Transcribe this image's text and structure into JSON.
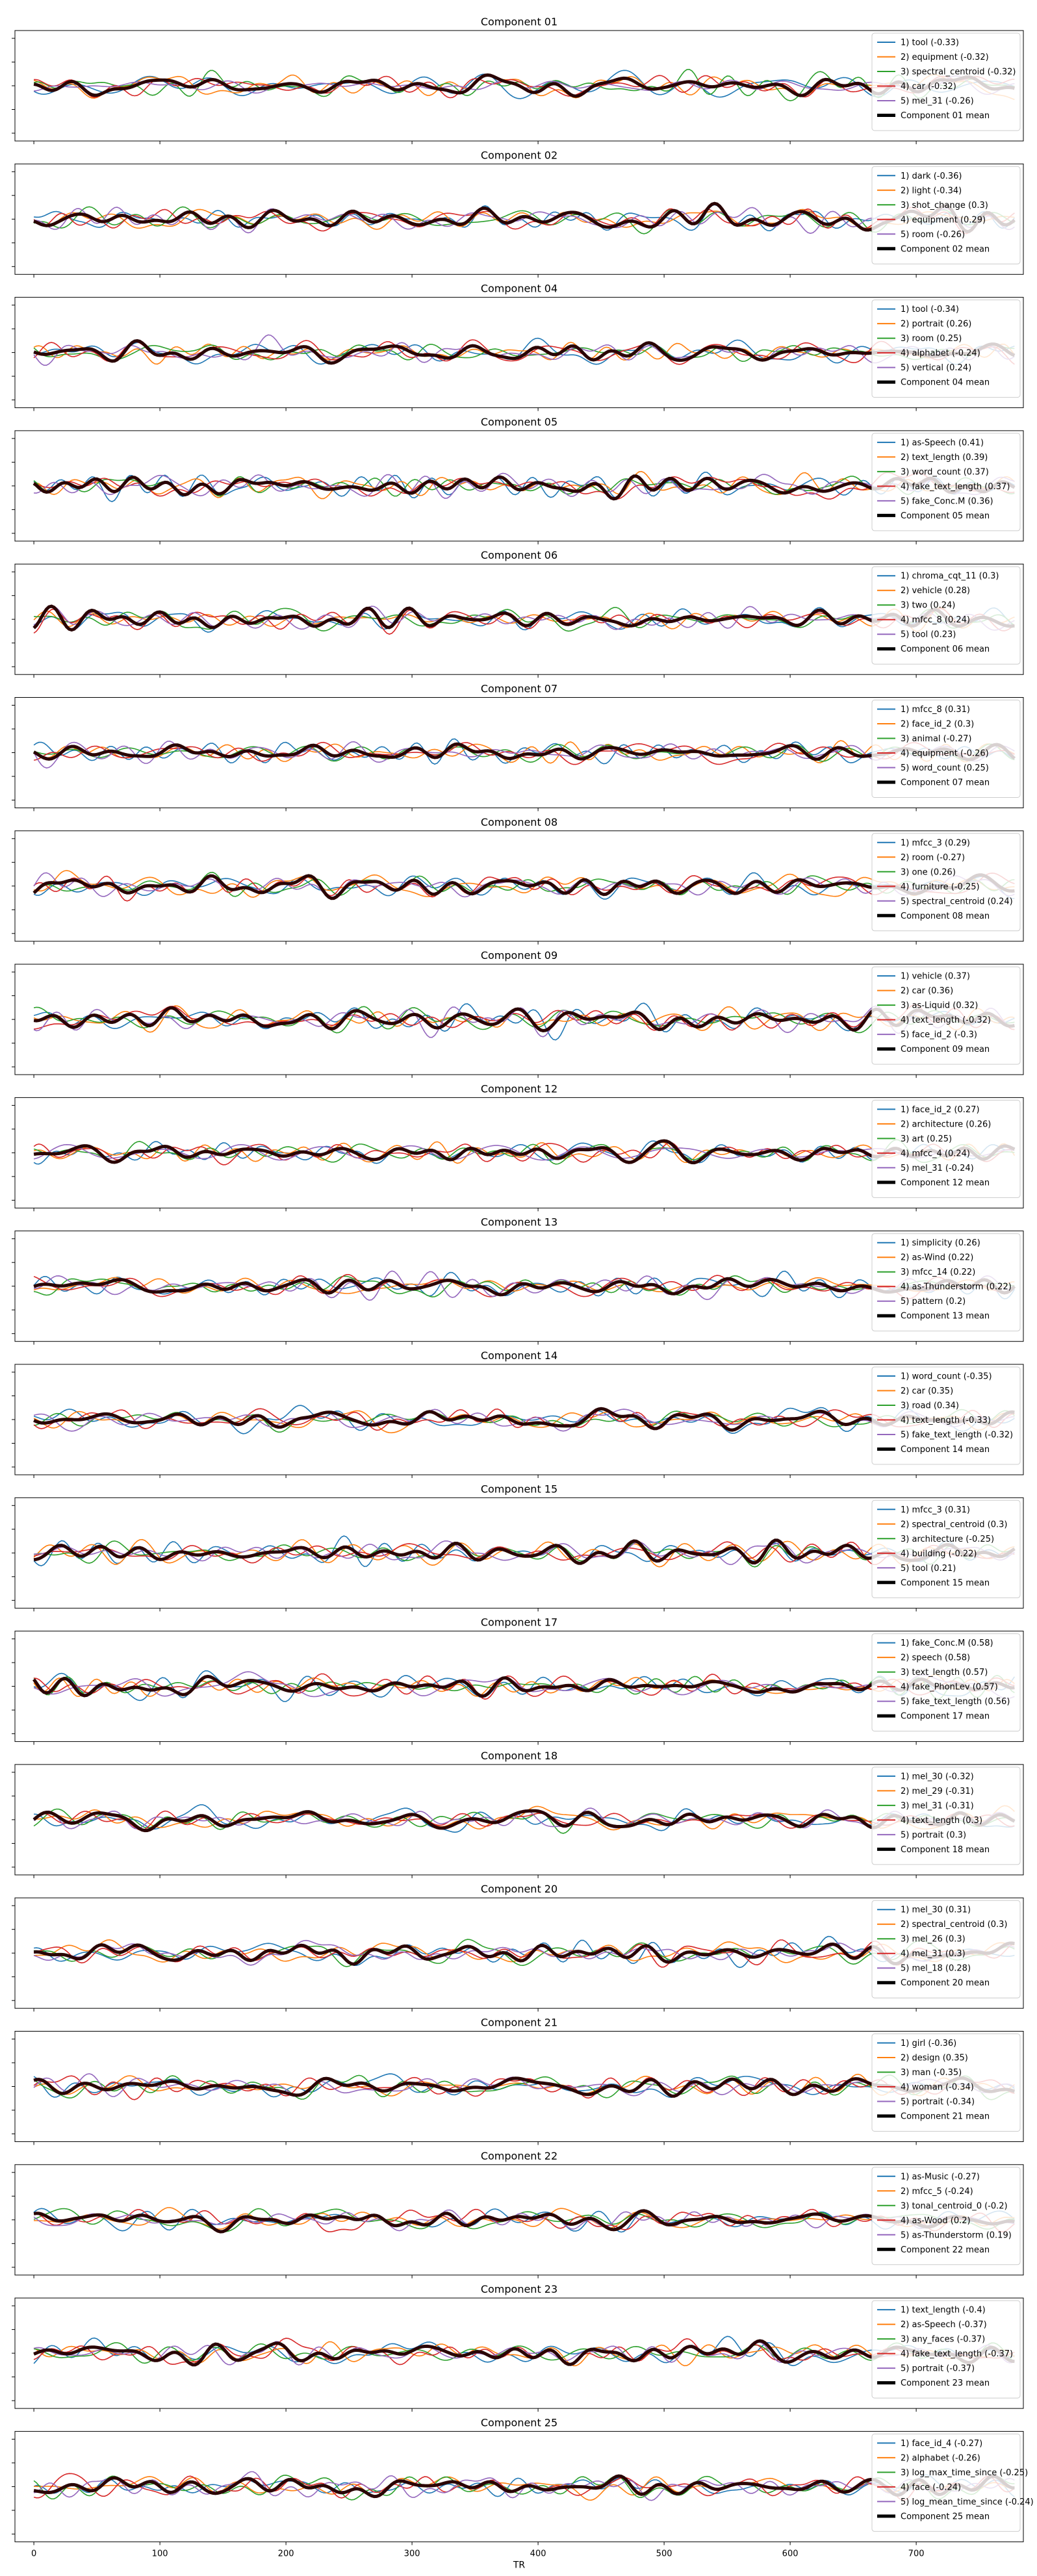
{
  "colors": {
    "series": [
      "#1f77b4",
      "#ff7f0e",
      "#2ca02c",
      "#d62728",
      "#9467bd",
      "#8c564b",
      "#e377c2"
    ],
    "mean": "#2a0505"
  },
  "xaxis": {
    "label": "TR",
    "ticks": [
      0,
      100,
      200,
      300,
      400,
      500,
      600,
      700
    ],
    "lim": [
      -15,
      785
    ]
  },
  "chart_data": [
    {
      "type": "line",
      "title": "Component 01",
      "ylim": [
        -3,
        3
      ],
      "series": [
        {
          "name": "1) tool (-0.33)"
        },
        {
          "name": "2) equipment (-0.32)"
        },
        {
          "name": "3) spectral_centroid (-0.32)"
        },
        {
          "name": "4) car (-0.32)"
        },
        {
          "name": "5) mel_31 (-0.26)"
        }
      ],
      "mean_label": "Component 01 mean"
    },
    {
      "type": "line",
      "title": "Component 02",
      "ylim": [
        -3,
        3
      ],
      "series": [
        {
          "name": "1) dark (-0.36)"
        },
        {
          "name": "2) light (-0.34)"
        },
        {
          "name": "3) shot_change (0.3)"
        },
        {
          "name": "4) equipment (0.29)"
        },
        {
          "name": "5) room (-0.26)"
        }
      ],
      "mean_label": "Component 02 mean"
    },
    {
      "type": "line",
      "title": "Component 04",
      "ylim": [
        -3,
        3
      ],
      "series": [
        {
          "name": "1) tool (-0.34)"
        },
        {
          "name": "2) portrait (0.26)"
        },
        {
          "name": "3) room (0.25)"
        },
        {
          "name": "4) alphabet (-0.24)"
        },
        {
          "name": "5) vertical (0.24)"
        }
      ],
      "mean_label": "Component 04 mean"
    },
    {
      "type": "line",
      "title": "Component 05",
      "ylim": [
        -3,
        3
      ],
      "series": [
        {
          "name": "1) as-Speech (0.41)"
        },
        {
          "name": "2) text_length (0.39)"
        },
        {
          "name": "3) word_count (0.37)"
        },
        {
          "name": "4) fake_text_length (0.37)"
        },
        {
          "name": "5) fake_Conc.M (0.36)"
        }
      ],
      "mean_label": "Component 05 mean"
    },
    {
      "type": "line",
      "title": "Component 06",
      "ylim": [
        -3,
        3
      ],
      "series": [
        {
          "name": "1) chroma_cqt_11 (0.3)"
        },
        {
          "name": "2) vehicle (0.28)"
        },
        {
          "name": "3) two (0.24)"
        },
        {
          "name": "4) mfcc_8 (0.24)"
        },
        {
          "name": "5) tool (0.23)"
        }
      ],
      "mean_label": "Component 06 mean"
    },
    {
      "type": "line",
      "title": "Component 07",
      "ylim": [
        -3,
        3
      ],
      "series": [
        {
          "name": "1) mfcc_8 (0.31)"
        },
        {
          "name": "2) face_id_2 (0.3)"
        },
        {
          "name": "3) animal (-0.27)"
        },
        {
          "name": "4) equipment (-0.26)"
        },
        {
          "name": "5) word_count (0.25)"
        }
      ],
      "mean_label": "Component 07 mean"
    },
    {
      "type": "line",
      "title": "Component 08",
      "ylim": [
        -3,
        3
      ],
      "series": [
        {
          "name": "1) mfcc_3 (0.29)"
        },
        {
          "name": "2) room (-0.27)"
        },
        {
          "name": "3) one (0.26)"
        },
        {
          "name": "4) furniture (-0.25)"
        },
        {
          "name": "5) spectral_centroid (0.24)"
        }
      ],
      "mean_label": "Component 08 mean"
    },
    {
      "type": "line",
      "title": "Component 09",
      "ylim": [
        -3,
        3
      ],
      "series": [
        {
          "name": "1) vehicle (0.37)"
        },
        {
          "name": "2) car (0.36)"
        },
        {
          "name": "3) as-Liquid (0.32)"
        },
        {
          "name": "4) text_length (-0.32)"
        },
        {
          "name": "5) face_id_2 (-0.3)"
        }
      ],
      "mean_label": "Component 09 mean"
    },
    {
      "type": "line",
      "title": "Component 12",
      "ylim": [
        -3,
        3
      ],
      "series": [
        {
          "name": "1) face_id_2 (0.27)"
        },
        {
          "name": "2) architecture (0.26)"
        },
        {
          "name": "3) art (0.25)"
        },
        {
          "name": "4) mfcc_4 (0.24)"
        },
        {
          "name": "5) mel_31 (-0.24)"
        }
      ],
      "mean_label": "Component 12 mean"
    },
    {
      "type": "line",
      "title": "Component 13",
      "ylim": [
        -3,
        3
      ],
      "series": [
        {
          "name": "1) simplicity (0.26)"
        },
        {
          "name": "2) as-Wind (0.22)"
        },
        {
          "name": "3) mfcc_14 (0.22)"
        },
        {
          "name": "4) as-Thunderstorm (0.22)"
        },
        {
          "name": "5) pattern (0.2)"
        }
      ],
      "mean_label": "Component 13 mean"
    },
    {
      "type": "line",
      "title": "Component 14",
      "ylim": [
        -3,
        3
      ],
      "series": [
        {
          "name": "1) word_count (-0.35)"
        },
        {
          "name": "2) car (0.35)"
        },
        {
          "name": "3) road (0.34)"
        },
        {
          "name": "4) text_length (-0.33)"
        },
        {
          "name": "5) fake_text_length (-0.32)"
        }
      ],
      "mean_label": "Component 14 mean"
    },
    {
      "type": "line",
      "title": "Component 15",
      "ylim": [
        -3,
        3
      ],
      "series": [
        {
          "name": "1) mfcc_3 (0.31)"
        },
        {
          "name": "2) spectral_centroid (0.3)"
        },
        {
          "name": "3) architecture (-0.25)"
        },
        {
          "name": "4) building (-0.22)"
        },
        {
          "name": "5) tool (0.21)"
        }
      ],
      "mean_label": "Component 15 mean"
    },
    {
      "type": "line",
      "title": "Component 17",
      "ylim": [
        -3,
        3
      ],
      "series": [
        {
          "name": "1) fake_Conc.M (0.58)"
        },
        {
          "name": "2) speech (0.58)"
        },
        {
          "name": "3) text_length (0.57)"
        },
        {
          "name": "4) fake_PhonLev (0.57)"
        },
        {
          "name": "5) fake_text_length (0.56)"
        }
      ],
      "mean_label": "Component 17 mean"
    },
    {
      "type": "line",
      "title": "Component 18",
      "ylim": [
        -3,
        3
      ],
      "series": [
        {
          "name": "1) mel_30 (-0.32)"
        },
        {
          "name": "2) mel_29 (-0.31)"
        },
        {
          "name": "3) mel_31 (-0.31)"
        },
        {
          "name": "4) text_length (0.3)"
        },
        {
          "name": "5) portrait (0.3)"
        }
      ],
      "mean_label": "Component 18 mean"
    },
    {
      "type": "line",
      "title": "Component 20",
      "ylim": [
        -3,
        3
      ],
      "series": [
        {
          "name": "1) mel_30 (0.31)"
        },
        {
          "name": "2) spectral_centroid (0.3)"
        },
        {
          "name": "3) mel_26 (0.3)"
        },
        {
          "name": "4) mel_31 (0.3)"
        },
        {
          "name": "5) mel_18 (0.28)"
        }
      ],
      "mean_label": "Component 20 mean"
    },
    {
      "type": "line",
      "title": "Component 21",
      "ylim": [
        -3,
        3
      ],
      "series": [
        {
          "name": "1) girl (-0.36)"
        },
        {
          "name": "2) design (0.35)"
        },
        {
          "name": "3) man (-0.35)"
        },
        {
          "name": "4) woman (-0.34)"
        },
        {
          "name": "5) portrait (-0.34)"
        }
      ],
      "mean_label": "Component 21 mean"
    },
    {
      "type": "line",
      "title": "Component 22",
      "ylim": [
        -3,
        3
      ],
      "series": [
        {
          "name": "1) as-Music (-0.27)"
        },
        {
          "name": "2) mfcc_5 (-0.24)"
        },
        {
          "name": "3) tonal_centroid_0 (-0.2)"
        },
        {
          "name": "4) as-Wood (0.2)"
        },
        {
          "name": "5) as-Thunderstorm (0.19)"
        }
      ],
      "mean_label": "Component 22 mean"
    },
    {
      "type": "line",
      "title": "Component 23",
      "ylim": [
        -3,
        3
      ],
      "series": [
        {
          "name": "1) text_length (-0.4)"
        },
        {
          "name": "2) as-Speech (-0.37)"
        },
        {
          "name": "3) any_faces (-0.37)"
        },
        {
          "name": "4) fake_text_length (-0.37)"
        },
        {
          "name": "5) portrait (-0.37)"
        }
      ],
      "mean_label": "Component 23 mean"
    },
    {
      "type": "line",
      "title": "Component 25",
      "ylim": [
        -3,
        3
      ],
      "series": [
        {
          "name": "1) face_id_4 (-0.27)"
        },
        {
          "name": "2) alphabet (-0.26)"
        },
        {
          "name": "3) log_max_time_since (-0.25)"
        },
        {
          "name": "4) face (-0.24)"
        },
        {
          "name": "5) log_mean_time_since (-0.24)"
        }
      ],
      "mean_label": "Component 25 mean"
    }
  ]
}
